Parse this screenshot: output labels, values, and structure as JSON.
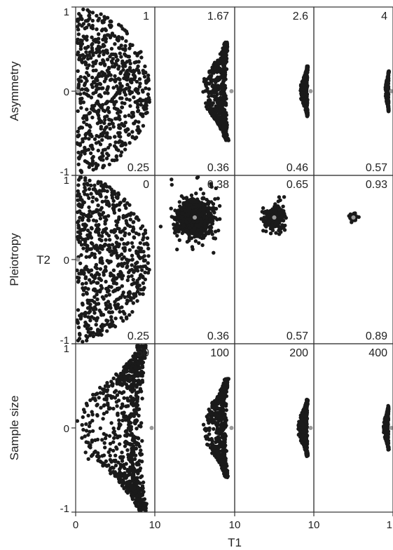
{
  "figure": {
    "x_axis_title": "T1",
    "y_axis_title": "T2",
    "point_color": "#1a1a1a",
    "center_color": "#9a9a9a",
    "frame_color": "#333333"
  },
  "chart_data": {
    "type": "scatter",
    "x_tick_labels": [
      "0",
      "10",
      "10",
      "10",
      "1"
    ],
    "xlim": [
      0,
      10
    ],
    "ylim": [
      -1,
      1
    ],
    "y_ticks": [
      1,
      0,
      -1
    ],
    "grid": false,
    "rows": [
      {
        "label": "Asymmetry",
        "panels": [
          {
            "top": "1",
            "bottom": "0.25",
            "pattern": "fill",
            "cx": 0.0,
            "spread": 9.5,
            "density": 700
          },
          {
            "top": "1.67",
            "bottom": "0.36",
            "pattern": "crescent",
            "cx": 9.3,
            "spread": 3.3,
            "density": 560
          },
          {
            "top": "2.6",
            "bottom": "0.46",
            "pattern": "crescent",
            "cx": 9.3,
            "spread": 1.0,
            "density": 300
          },
          {
            "top": "4",
            "bottom": "0.57",
            "pattern": "crescent",
            "cx": 9.5,
            "spread": 0.5,
            "density": 220
          }
        ]
      },
      {
        "label": "Pleiotropy",
        "panels": [
          {
            "top": "0",
            "bottom": "0.25",
            "pattern": "fill",
            "cx": 0.0,
            "spread": 9.5,
            "density": 700
          },
          {
            "top": "0.38",
            "bottom": "0.36",
            "pattern": "blob",
            "cx": 5.0,
            "cy": 0.5,
            "spread": 2.0,
            "density": 800
          },
          {
            "top": "0.65",
            "bottom": "0.57",
            "pattern": "blob",
            "cx": 5.0,
            "cy": 0.5,
            "spread": 1.0,
            "density": 380
          },
          {
            "top": "0.93",
            "bottom": "0.89",
            "pattern": "blob",
            "cx": 5.0,
            "cy": 0.5,
            "spread": 0.35,
            "density": 120
          }
        ]
      },
      {
        "label": "Sample size",
        "panels": [
          {
            "top": "50",
            "bottom": "",
            "pattern": "crescent",
            "cx": 9.3,
            "spread": 9.0,
            "density": 800
          },
          {
            "top": "100",
            "bottom": "",
            "pattern": "crescent",
            "cx": 9.3,
            "spread": 3.3,
            "density": 560
          },
          {
            "top": "200",
            "bottom": "",
            "pattern": "crescent",
            "cx": 9.3,
            "spread": 1.3,
            "density": 320
          },
          {
            "top": "400",
            "bottom": "",
            "pattern": "crescent",
            "cx": 9.5,
            "spread": 0.7,
            "density": 240
          }
        ]
      }
    ]
  }
}
